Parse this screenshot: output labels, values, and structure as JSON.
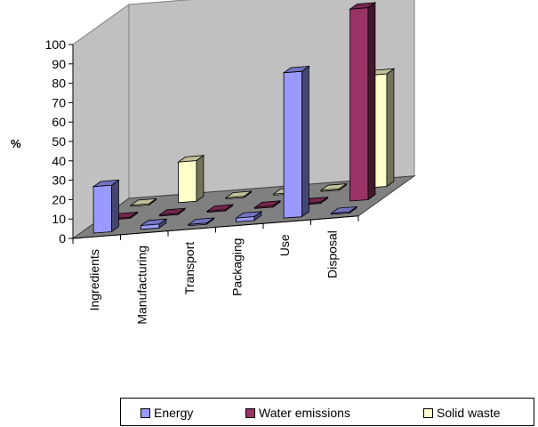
{
  "chart_data": {
    "type": "bar",
    "title": "",
    "xlabel": "",
    "ylabel": "%",
    "ylim": [
      0,
      100
    ],
    "yticks": [
      0,
      10,
      20,
      30,
      40,
      50,
      60,
      70,
      80,
      90,
      100
    ],
    "categories": [
      "Ingredients",
      "Manufacturing",
      "Transport",
      "Packaging",
      "Use",
      "Disposal"
    ],
    "series": [
      {
        "name": "Energy",
        "color": "#9999ff",
        "values": [
          24,
          2,
          0,
          2,
          75,
          0
        ]
      },
      {
        "name": "Water emissions",
        "color": "#993366",
        "values": [
          0,
          0,
          0,
          0,
          0,
          99
        ]
      },
      {
        "name": "Solid waste",
        "color": "#ffffcc",
        "values": [
          0,
          21,
          0,
          0,
          0,
          58
        ]
      }
    ],
    "legend": "bottom",
    "grid": false
  }
}
